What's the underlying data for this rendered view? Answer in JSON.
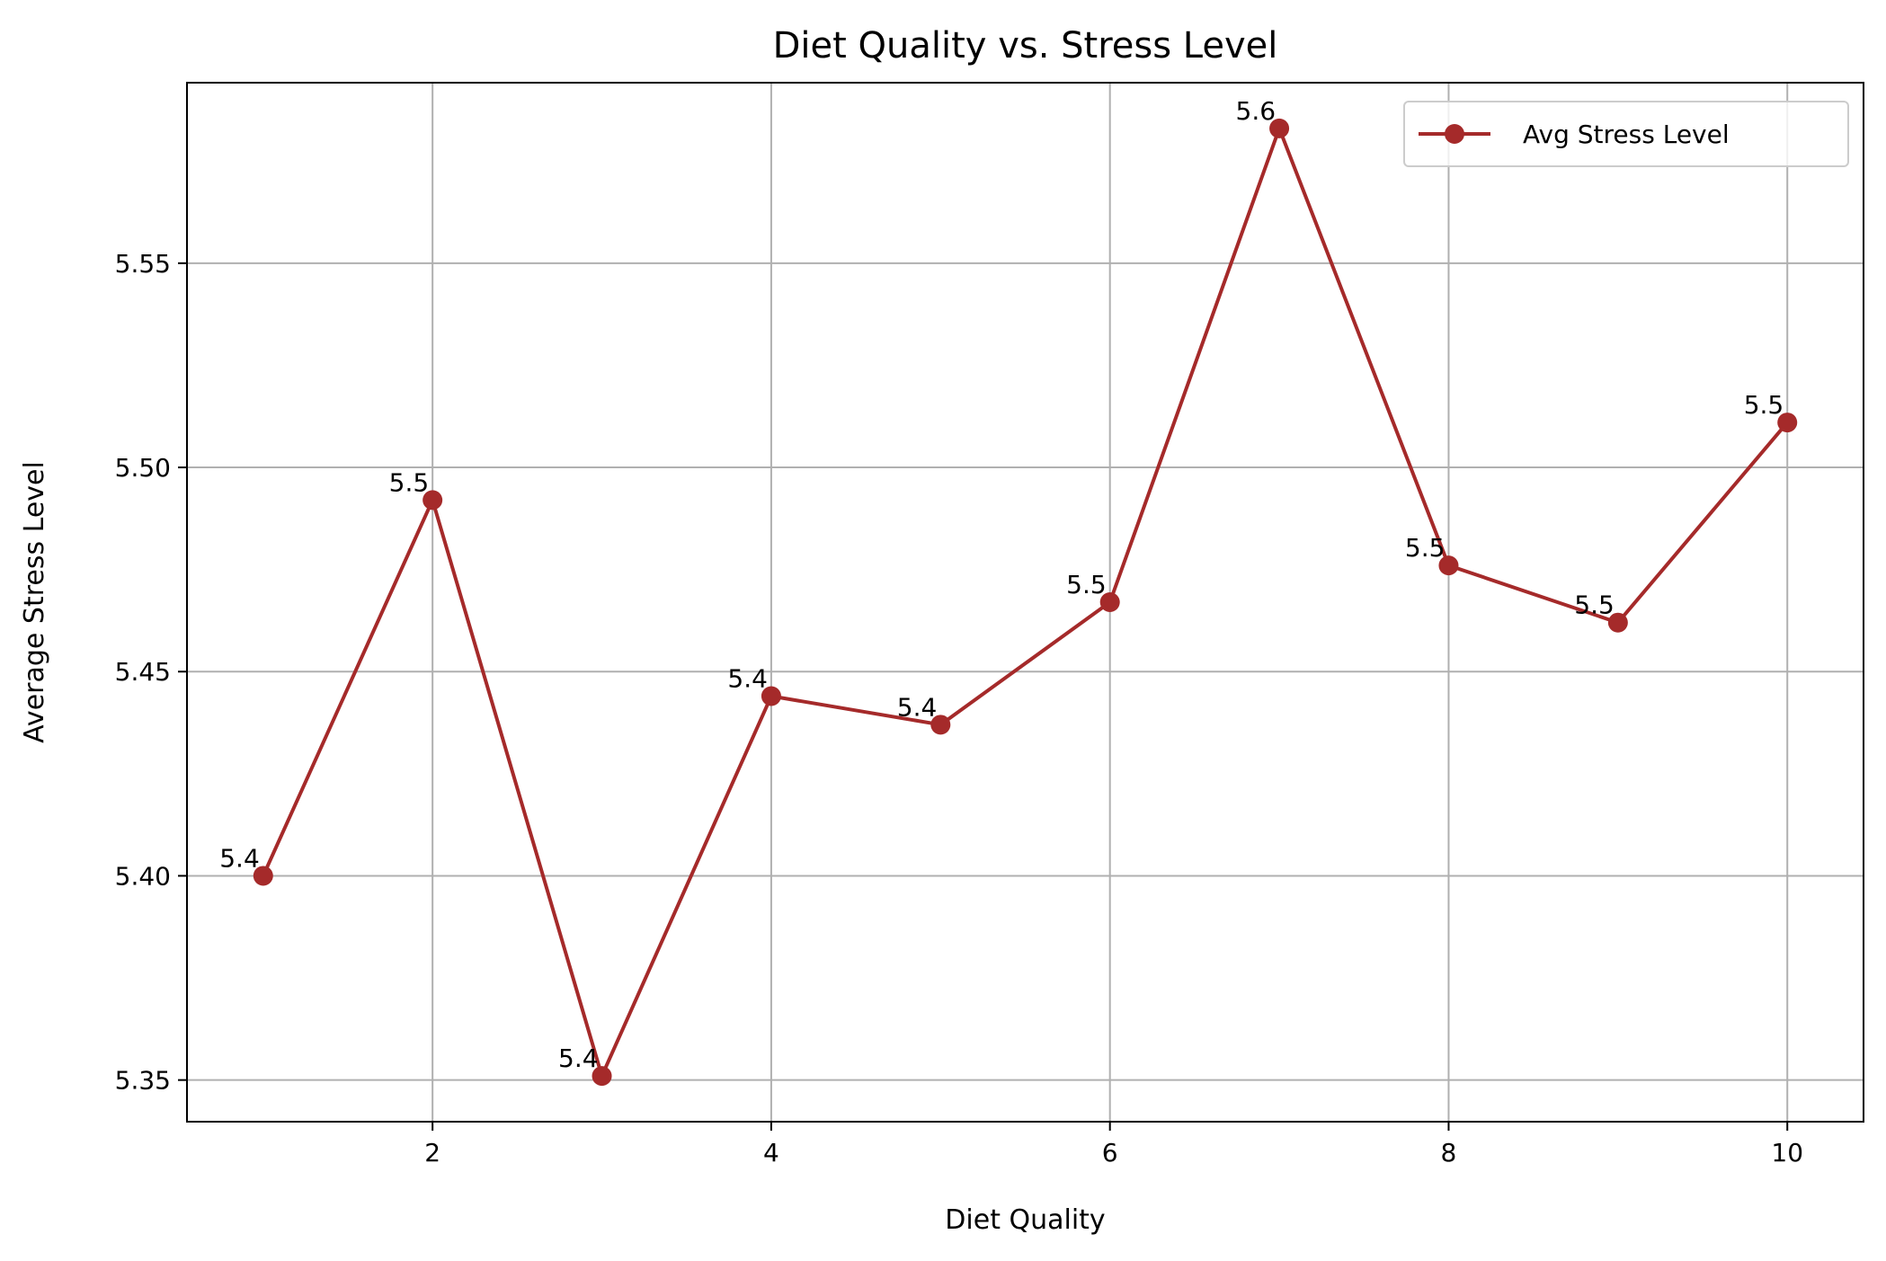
{
  "chart_data": {
    "type": "line",
    "title": "Diet Quality vs. Stress Level",
    "xlabel": "Diet Quality",
    "ylabel": "Average Stress Level",
    "x": [
      1,
      2,
      3,
      4,
      5,
      6,
      7,
      8,
      9,
      10
    ],
    "series": [
      {
        "name": "Avg Stress Level",
        "color": "#a52a2a",
        "values": [
          5.4,
          5.492,
          5.351,
          5.444,
          5.437,
          5.467,
          5.583,
          5.476,
          5.462,
          5.511
        ],
        "labels": [
          "5.4",
          "5.5",
          "5.4",
          "5.4",
          "5.4",
          "5.5",
          "5.6",
          "5.5",
          "5.5",
          "5.5"
        ]
      }
    ],
    "xlim": [
      0.55,
      10.45
    ],
    "ylim": [
      5.3398,
      5.5942
    ],
    "xticks": [
      2,
      4,
      6,
      8,
      10
    ],
    "xtick_labels": [
      "2",
      "4",
      "6",
      "8",
      "10"
    ],
    "yticks": [
      5.35,
      5.4,
      5.45,
      5.5,
      5.55
    ],
    "ytick_labels": [
      "5.35",
      "5.40",
      "5.45",
      "5.50",
      "5.55"
    ],
    "grid": true,
    "legend": "upper-right"
  }
}
